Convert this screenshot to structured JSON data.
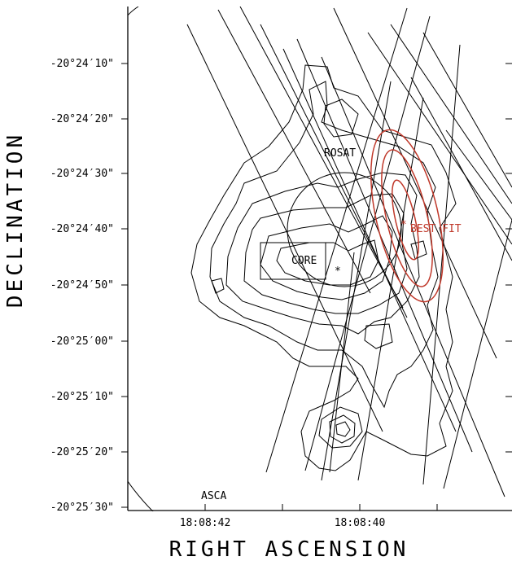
{
  "chart_data": {
    "type": "diagram",
    "xlabel": "RIGHT ASCENSION",
    "ylabel": "DECLINATION",
    "x_ticks": [
      "18:08:42",
      "18:08:40"
    ],
    "y_ticks": [
      "-20°24′10\"",
      "-20°24′20\"",
      "-20°24′30\"",
      "-20°24′40\"",
      "-20°24′50\"",
      "-20°25′00\"",
      "-20°25′10\"",
      "-20°25′20\"",
      "-20°25′30\""
    ],
    "annotations": {
      "rosat": "ROSAT",
      "core": "CORE",
      "best_fit": "BEST FIT",
      "asca": "ASCA"
    },
    "colors": {
      "ink": "#000000",
      "best_fit": "#c0392b"
    }
  }
}
